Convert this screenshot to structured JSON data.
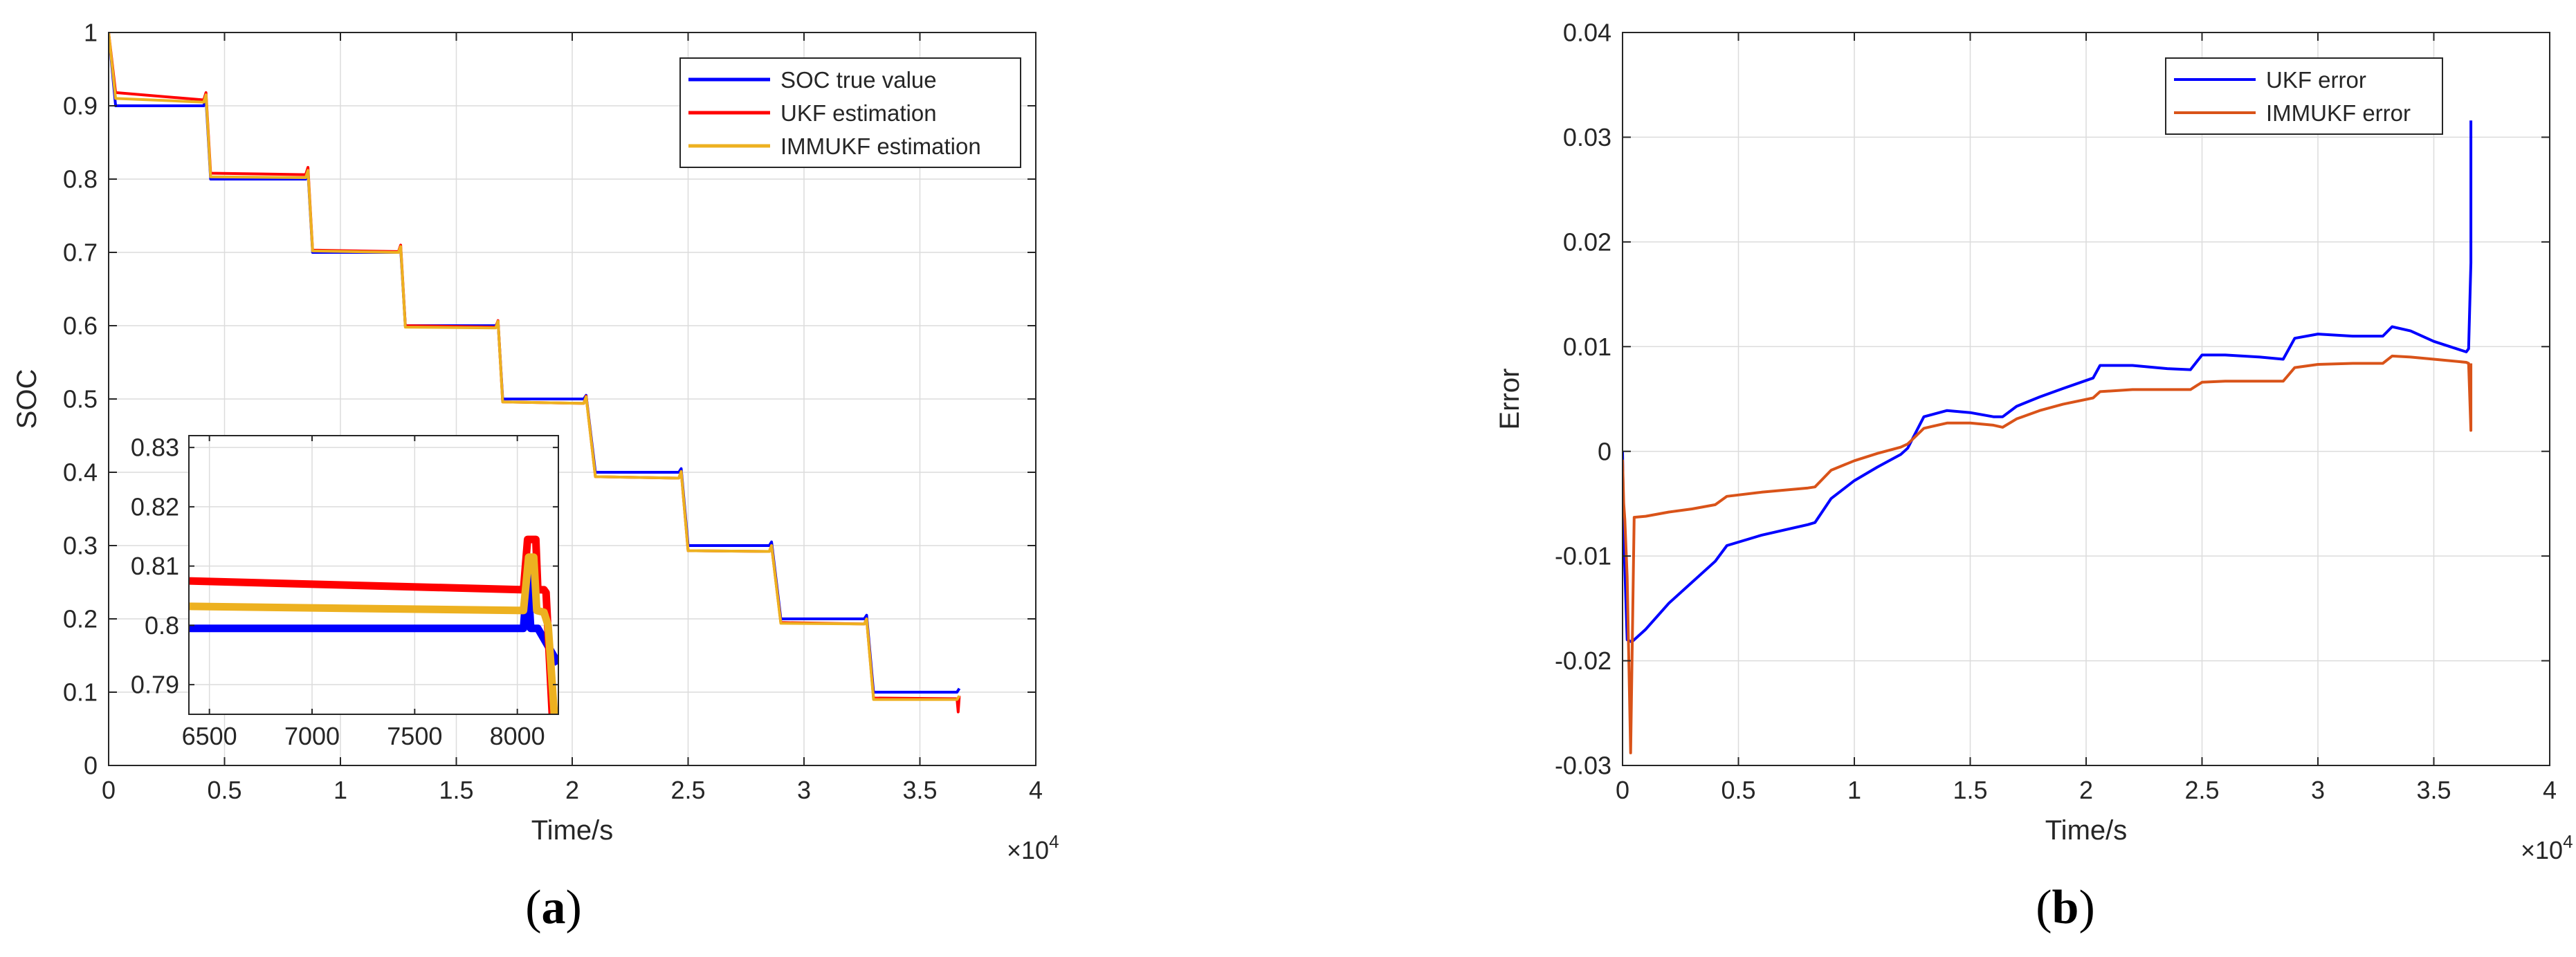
{
  "captions": {
    "a": {
      "open": "(",
      "letter": "a",
      "close": ")"
    },
    "b": {
      "open": "(",
      "letter": "b",
      "close": ")"
    }
  },
  "chart_data": [
    {
      "id": "a",
      "type": "line",
      "title": "",
      "xlabel": "Time/s",
      "ylabel": "SOC",
      "x_exponent_label": "×10",
      "x_exponent_power": "4",
      "xlim": [
        0,
        4
      ],
      "ylim": [
        0,
        1
      ],
      "xticks": [
        0,
        0.5,
        1,
        1.5,
        2,
        2.5,
        3,
        3.5,
        4
      ],
      "xtick_labels": [
        "0",
        "0.5",
        "1",
        "1.5",
        "2",
        "2.5",
        "3",
        "3.5",
        "4"
      ],
      "yticks": [
        0,
        0.1,
        0.2,
        0.3,
        0.4,
        0.5,
        0.6,
        0.7,
        0.8,
        0.9,
        1
      ],
      "ytick_labels": [
        "0",
        "0.1",
        "0.2",
        "0.3",
        "0.4",
        "0.5",
        "0.6",
        "0.7",
        "0.8",
        "0.9",
        "1"
      ],
      "grid": true,
      "legend_position": "top-right",
      "series": [
        {
          "name": "SOC true value",
          "color": "#0000ff",
          "x": [
            0,
            0.03,
            0.41,
            0.42,
            0.44,
            0.85,
            0.86,
            0.88,
            1.25,
            1.26,
            1.28,
            1.67,
            1.68,
            1.7,
            2.05,
            2.06,
            2.1,
            2.46,
            2.47,
            2.5,
            2.85,
            2.86,
            2.9,
            3.26,
            3.27,
            3.3,
            3.66,
            3.67
          ],
          "y": [
            1,
            0.9,
            0.9,
            0.91,
            0.8,
            0.8,
            0.81,
            0.7,
            0.7,
            0.705,
            0.6,
            0.6,
            0.605,
            0.5,
            0.5,
            0.505,
            0.4,
            0.4,
            0.405,
            0.3,
            0.3,
            0.305,
            0.2,
            0.2,
            0.205,
            0.1,
            0.1,
            0.105
          ]
        },
        {
          "name": "UKF estimation",
          "color": "#ff0000",
          "x": [
            0,
            0.03,
            0.41,
            0.42,
            0.44,
            0.85,
            0.86,
            0.88,
            1.25,
            1.26,
            1.28,
            1.67,
            1.68,
            1.7,
            2.05,
            2.06,
            2.1,
            2.46,
            2.47,
            2.5,
            2.85,
            2.86,
            2.9,
            3.26,
            3.27,
            3.3,
            3.66,
            3.665,
            3.67
          ],
          "y": [
            1,
            0.918,
            0.908,
            0.918,
            0.808,
            0.806,
            0.816,
            0.703,
            0.701,
            0.71,
            0.6,
            0.598,
            0.607,
            0.496,
            0.494,
            0.504,
            0.394,
            0.392,
            0.401,
            0.293,
            0.292,
            0.3,
            0.195,
            0.193,
            0.2,
            0.092,
            0.091,
            0.073,
            0.095
          ]
        },
        {
          "name": "IMMUKF estimation",
          "color": "#edb120",
          "x": [
            0,
            0.03,
            0.41,
            0.42,
            0.44,
            0.85,
            0.86,
            0.88,
            1.25,
            1.26,
            1.28,
            1.67,
            1.68,
            1.7,
            2.05,
            2.06,
            2.1,
            2.46,
            2.47,
            2.5,
            2.85,
            2.86,
            2.9,
            3.26,
            3.27,
            3.3,
            3.66,
            3.67
          ],
          "y": [
            1,
            0.91,
            0.905,
            0.915,
            0.803,
            0.802,
            0.812,
            0.702,
            0.7,
            0.708,
            0.598,
            0.597,
            0.606,
            0.496,
            0.494,
            0.503,
            0.394,
            0.392,
            0.401,
            0.293,
            0.292,
            0.3,
            0.194,
            0.193,
            0.2,
            0.09,
            0.09,
            0.095
          ]
        }
      ],
      "inset": {
        "xlim": [
          6400,
          8200
        ],
        "ylim": [
          0.785,
          0.832
        ],
        "xticks": [
          6500,
          7000,
          7500,
          8000
        ],
        "xtick_labels": [
          "6500",
          "7000",
          "7500",
          "8000"
        ],
        "yticks": [
          0.79,
          0.8,
          0.81,
          0.82,
          0.83
        ],
        "ytick_labels": [
          "0.79",
          "0.8",
          "0.81",
          "0.82",
          "0.83"
        ],
        "series": [
          {
            "name": "SOC true value",
            "color": "#0000ff",
            "x": [
              6400,
              8030,
              8050,
              8065,
              8075,
              8100,
              8200
            ],
            "y": [
              0.7995,
              0.7995,
              0.809,
              0.7995,
              0.7995,
              0.7995,
              0.7935
            ]
          },
          {
            "name": "UKF estimation",
            "color": "#ff0000",
            "x": [
              6400,
              8030,
              8050,
              8090,
              8100,
              8130,
              8140,
              8170
            ],
            "y": [
              0.8075,
              0.806,
              0.8145,
              0.8145,
              0.806,
              0.806,
              0.8055,
              0.785
            ]
          },
          {
            "name": "IMMUKF estimation",
            "color": "#edb120",
            "x": [
              6400,
              8030,
              8055,
              8080,
              8095,
              8130,
              8150,
              8180
            ],
            "y": [
              0.8032,
              0.8025,
              0.8115,
              0.8115,
              0.8025,
              0.8022,
              0.8,
              0.785
            ]
          }
        ]
      }
    },
    {
      "id": "b",
      "type": "line",
      "title": "",
      "xlabel": "Time/s",
      "ylabel": "Error",
      "x_exponent_label": "×10",
      "x_exponent_power": "4",
      "xlim": [
        0,
        4
      ],
      "ylim": [
        -0.03,
        0.04
      ],
      "xticks": [
        0,
        0.5,
        1,
        1.5,
        2,
        2.5,
        3,
        3.5,
        4
      ],
      "xtick_labels": [
        "0",
        "0.5",
        "1",
        "1.5",
        "2",
        "2.5",
        "3",
        "3.5",
        "4"
      ],
      "yticks": [
        -0.03,
        -0.02,
        -0.01,
        0,
        0.01,
        0.02,
        0.03,
        0.04
      ],
      "ytick_labels": [
        "-0.03",
        "-0.02",
        "-0.01",
        "0",
        "0.01",
        "0.02",
        "0.03",
        "0.04"
      ],
      "grid": true,
      "legend_position": "top-right",
      "series": [
        {
          "name": "UKF error",
          "color": "#0000ff",
          "x": [
            0,
            0.005,
            0.02,
            0.04,
            0.1,
            0.2,
            0.3,
            0.4,
            0.45,
            0.6,
            0.8,
            0.83,
            0.9,
            1.0,
            1.1,
            1.2,
            1.23,
            1.3,
            1.4,
            1.5,
            1.6,
            1.64,
            1.7,
            1.8,
            1.9,
            2.03,
            2.06,
            2.2,
            2.35,
            2.45,
            2.5,
            2.6,
            2.75,
            2.85,
            2.9,
            3.0,
            3.15,
            3.28,
            3.32,
            3.4,
            3.5,
            3.64,
            3.65,
            3.66,
            3.66
          ],
          "y": [
            0,
            -0.008,
            -0.018,
            -0.0182,
            -0.017,
            -0.0145,
            -0.0125,
            -0.0105,
            -0.009,
            -0.008,
            -0.007,
            -0.0068,
            -0.0045,
            -0.0028,
            -0.0015,
            -0.0003,
            0.0003,
            0.0033,
            0.0039,
            0.0037,
            0.0033,
            0.0033,
            0.0043,
            0.0052,
            0.006,
            0.007,
            0.0082,
            0.0082,
            0.0079,
            0.0078,
            0.0092,
            0.0092,
            0.009,
            0.0088,
            0.0108,
            0.0112,
            0.011,
            0.011,
            0.0119,
            0.0115,
            0.0105,
            0.0095,
            0.0098,
            0.018,
            0.0316
          ]
        },
        {
          "name": "IMMUKF error",
          "color": "#d95319",
          "x": [
            0,
            0.005,
            0.01,
            0.02,
            0.035,
            0.05,
            0.1,
            0.2,
            0.3,
            0.4,
            0.45,
            0.6,
            0.8,
            0.83,
            0.9,
            1.0,
            1.1,
            1.2,
            1.23,
            1.3,
            1.4,
            1.5,
            1.6,
            1.64,
            1.7,
            1.8,
            1.9,
            2.03,
            2.06,
            2.2,
            2.35,
            2.45,
            2.5,
            2.6,
            2.75,
            2.85,
            2.9,
            3.0,
            3.15,
            3.28,
            3.32,
            3.4,
            3.5,
            3.64,
            3.65,
            3.66,
            3.66
          ],
          "y": [
            -0.0008,
            -0.005,
            -0.0065,
            -0.012,
            -0.0288,
            -0.0063,
            -0.0062,
            -0.0058,
            -0.0055,
            -0.0051,
            -0.0043,
            -0.0039,
            -0.0035,
            -0.0034,
            -0.0018,
            -0.0009,
            -0.0002,
            0.0004,
            0.0007,
            0.0022,
            0.0027,
            0.0027,
            0.0025,
            0.0023,
            0.0031,
            0.0039,
            0.0045,
            0.0051,
            0.0057,
            0.0059,
            0.0059,
            0.0059,
            0.0066,
            0.0067,
            0.0067,
            0.0067,
            0.008,
            0.0083,
            0.0084,
            0.0084,
            0.0091,
            0.009,
            0.0088,
            0.0085,
            0.0084,
            0.002,
            0.0084
          ]
        }
      ]
    }
  ]
}
